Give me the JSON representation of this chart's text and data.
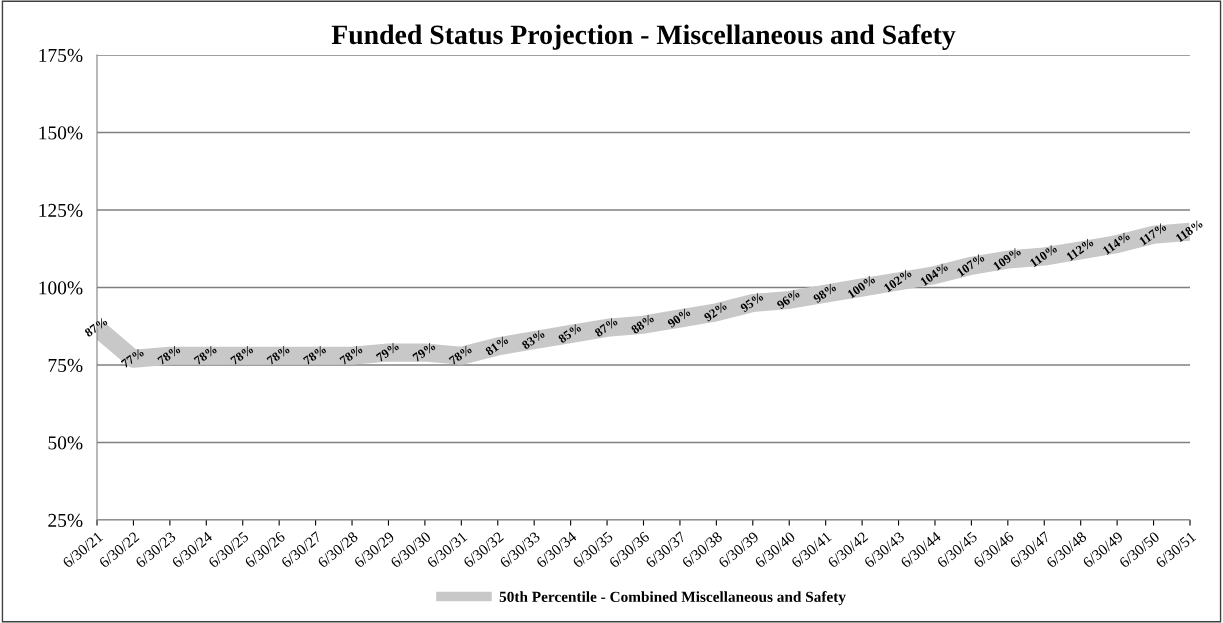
{
  "chart_data": {
    "type": "line",
    "title": "Funded Status Projection - Miscellaneous and Safety",
    "categories": [
      "6/30/21",
      "6/30/22",
      "6/30/23",
      "6/30/24",
      "6/30/25",
      "6/30/26",
      "6/30/27",
      "6/30/28",
      "6/30/29",
      "6/30/30",
      "6/30/31",
      "6/30/32",
      "6/30/33",
      "6/30/34",
      "6/30/35",
      "6/30/36",
      "6/30/37",
      "6/30/38",
      "6/30/39",
      "6/30/40",
      "6/30/41",
      "6/30/42",
      "6/30/43",
      "6/30/44",
      "6/30/45",
      "6/30/46",
      "6/30/47",
      "6/30/48",
      "6/30/49",
      "6/30/50",
      "6/30/51"
    ],
    "series": [
      {
        "name": "50th Percentile - Combined Miscellaneous and Safety",
        "color": "#c8c8c8",
        "values": [
          87,
          77,
          78,
          78,
          78,
          78,
          78,
          78,
          79,
          79,
          78,
          81,
          83,
          85,
          87,
          88,
          90,
          92,
          95,
          96,
          98,
          100,
          102,
          104,
          107,
          109,
          110,
          112,
          114,
          117,
          118
        ],
        "value_labels": [
          "87%",
          "77%",
          "78%",
          "78%",
          "78%",
          "78%",
          "78%",
          "78%",
          "79%",
          "79%",
          "78%",
          "81%",
          "83%",
          "85%",
          "87%",
          "88%",
          "90%",
          "92%",
          "95%",
          "96%",
          "98%",
          "100%",
          "102%",
          "104%",
          "107%",
          "109%",
          "110%",
          "112%",
          "114%",
          "117%",
          "118%"
        ]
      }
    ],
    "ylim": [
      25,
      175
    ],
    "yticks": [
      {
        "value": 25,
        "label": "25%"
      },
      {
        "value": 50,
        "label": "50%"
      },
      {
        "value": 75,
        "label": "75%"
      },
      {
        "value": 100,
        "label": "100%"
      },
      {
        "value": 125,
        "label": "125%"
      },
      {
        "value": 150,
        "label": "150%"
      },
      {
        "value": 175,
        "label": "175%"
      }
    ],
    "grid": "y",
    "legend": "bottom",
    "marker": "none",
    "line_style": "solid"
  }
}
